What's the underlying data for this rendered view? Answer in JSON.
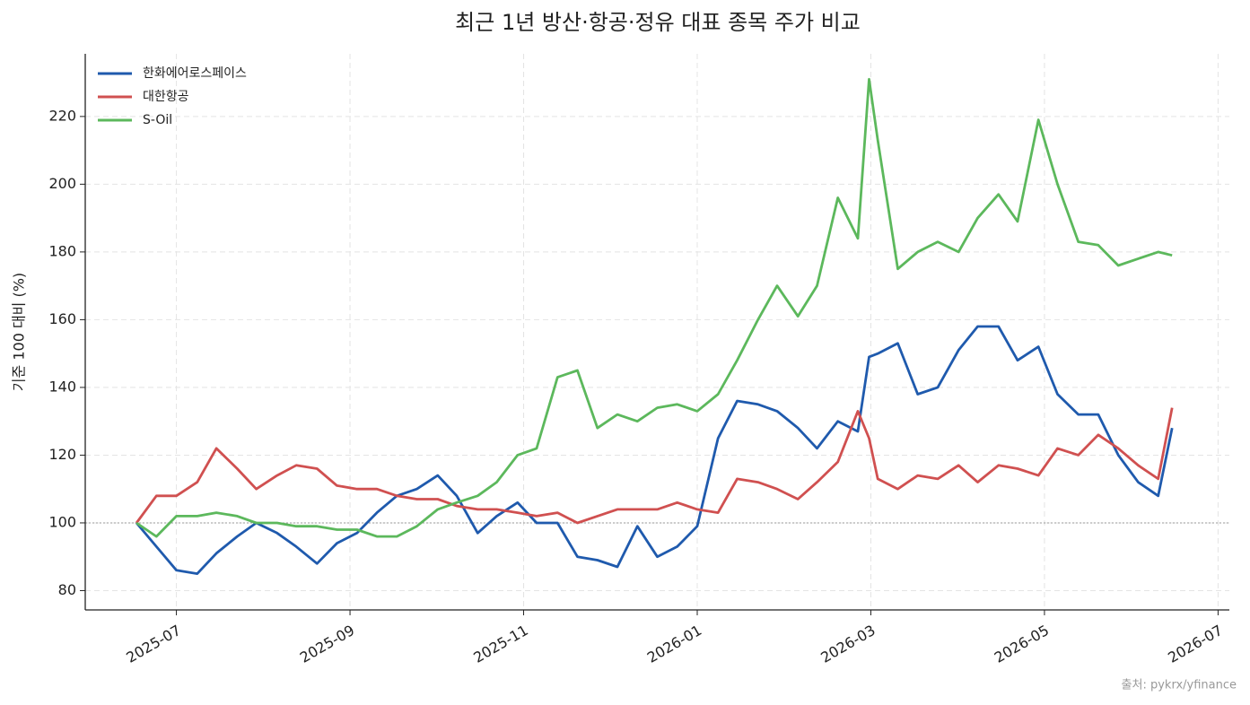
{
  "chart_data": {
    "type": "line",
    "title": "최근 1년 방산·항공·정유 대표 종목 주가 비교",
    "y_label": "기준 100 대비 (%)",
    "source": "출처: pykrx/yfinance",
    "x": [
      6.54,
      6.77,
      7.0,
      7.24,
      7.46,
      7.7,
      7.92,
      8.16,
      8.38,
      8.62,
      8.85,
      9.08,
      9.31,
      9.54,
      9.77,
      10.01,
      10.23,
      10.47,
      10.69,
      10.93,
      11.15,
      11.39,
      11.62,
      11.85,
      12.08,
      12.31,
      12.54,
      12.77,
      13.0,
      13.24,
      13.46,
      13.7,
      13.92,
      14.16,
      14.38,
      14.62,
      14.85,
      14.98,
      15.08,
      15.31,
      15.54,
      15.77,
      16.01,
      16.23,
      16.47,
      16.69,
      16.93,
      17.15,
      17.39,
      17.62,
      17.85,
      18.08,
      18.31,
      18.47
    ],
    "series": [
      {
        "name": "한화에어로스페이스",
        "color": "#1f5aad",
        "values": [
          100,
          93,
          86,
          85,
          91,
          96,
          100,
          97,
          93,
          88,
          94,
          97,
          103,
          108,
          110,
          114,
          108,
          97,
          102,
          106,
          100,
          100,
          90,
          89,
          87,
          99,
          90,
          93,
          99,
          125,
          136,
          135,
          133,
          128,
          122,
          130,
          127,
          149,
          150,
          153,
          138,
          140,
          151,
          158,
          158,
          148,
          152,
          138,
          132,
          132,
          120,
          112,
          108,
          128
        ]
      },
      {
        "name": "대한항공",
        "color": "#d05050",
        "values": [
          100,
          108,
          108,
          112,
          122,
          116,
          110,
          114,
          117,
          116,
          111,
          110,
          110,
          108,
          107,
          107,
          105,
          104,
          104,
          103,
          102,
          103,
          100,
          102,
          104,
          104,
          104,
          106,
          104,
          103,
          113,
          112,
          110,
          107,
          112,
          118,
          133,
          125,
          113,
          110,
          114,
          113,
          117,
          112,
          117,
          116,
          114,
          122,
          120,
          126,
          122,
          117,
          113,
          134
        ]
      },
      {
        "name": "S-Oil",
        "color": "#5cb85c",
        "values": [
          100,
          96,
          102,
          102,
          103,
          102,
          100,
          100,
          99,
          99,
          98,
          98,
          96,
          96,
          99,
          104,
          106,
          108,
          112,
          120,
          122,
          143,
          145,
          128,
          132,
          130,
          134,
          135,
          133,
          138,
          148,
          160,
          170,
          161,
          170,
          196,
          184,
          231,
          213,
          175,
          180,
          183,
          180,
          190,
          197,
          189,
          219,
          200,
          183,
          182,
          176,
          178,
          180,
          179
        ]
      }
    ],
    "xlim": [
      5.95,
      19.13
    ],
    "xticks": [
      {
        "value": 7,
        "label": "2025-07"
      },
      {
        "value": 9,
        "label": "2025-09"
      },
      {
        "value": 11,
        "label": "2025-11"
      },
      {
        "value": 13,
        "label": "2026-01"
      },
      {
        "value": 15,
        "label": "2026-03"
      },
      {
        "value": 17,
        "label": "2026-05"
      },
      {
        "value": 19,
        "label": "2026-07"
      }
    ],
    "ylim": [
      74.3,
      238.5
    ],
    "yticks": [
      80,
      100,
      120,
      140,
      160,
      180,
      200,
      220
    ],
    "reference_line": 100,
    "grid": true,
    "legend": "upper-left"
  }
}
